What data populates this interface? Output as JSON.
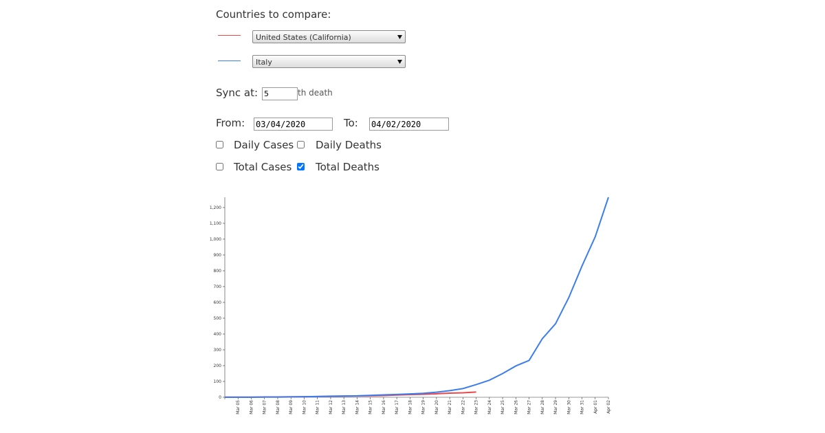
{
  "form": {
    "heading": "Countries to compare:",
    "sync_label": "Sync at:",
    "sync_value": 5,
    "sync_suffix": "th death",
    "from_label": "From:",
    "from_value": "03/04/2020",
    "to_label": "To:",
    "to_value": "04/02/2020",
    "checkboxes": [
      {
        "label": "Daily Cases",
        "checked": false
      },
      {
        "label": "Daily Deaths",
        "checked": false
      },
      {
        "label": "Total Cases",
        "checked": false
      },
      {
        "label": "Total Deaths",
        "checked": true
      }
    ]
  },
  "chart_data": {
    "type": "line",
    "categories": [
      null,
      "Mar 05",
      "Mar 06",
      "Mar 07",
      "Mar 08",
      "Mar 09",
      "Mar 10",
      "Mar 11",
      "Mar 12",
      "Mar 13",
      "Mar 14",
      "Mar 15",
      "Mar 16",
      "Mar 17",
      "Mar 18",
      "Mar 19",
      "Mar 20",
      "Mar 21",
      "Mar 22",
      "Mar 23",
      "Mar 24",
      "Mar 25",
      "Mar 26",
      "Mar 27",
      "Mar 28",
      "Mar 29",
      "Mar 30",
      "Mar 31",
      "Apr 01",
      "Apr 02"
    ],
    "series": [
      {
        "name": "United States (California)",
        "color": "#e8474c",
        "values": [
          1,
          1,
          1,
          2,
          2,
          3,
          4,
          5,
          6,
          7,
          8,
          9,
          11,
          14,
          17,
          19,
          22,
          26,
          28,
          33,
          null,
          null,
          null,
          null,
          null,
          null,
          null,
          null,
          null,
          null
        ]
      },
      {
        "name": "Italy",
        "color": "#3b7ded",
        "values": [
          0,
          0,
          0,
          1,
          1,
          2,
          3,
          5,
          7,
          8,
          9,
          12,
          15,
          18,
          21,
          25,
          32,
          42,
          55,
          80,
          108,
          150,
          198,
          233,
          370,
          465,
          630,
          830,
          1015,
          1265
        ]
      }
    ],
    "ylim": [
      0,
      1265
    ],
    "yticks": [
      0,
      100,
      200,
      300,
      400,
      500,
      600,
      700,
      800,
      900,
      {
        "value": 1000,
        "label": "1,000"
      },
      {
        "value": 1100,
        "label": "1,100"
      },
      {
        "value": 1200,
        "label": "1,200"
      }
    ]
  }
}
